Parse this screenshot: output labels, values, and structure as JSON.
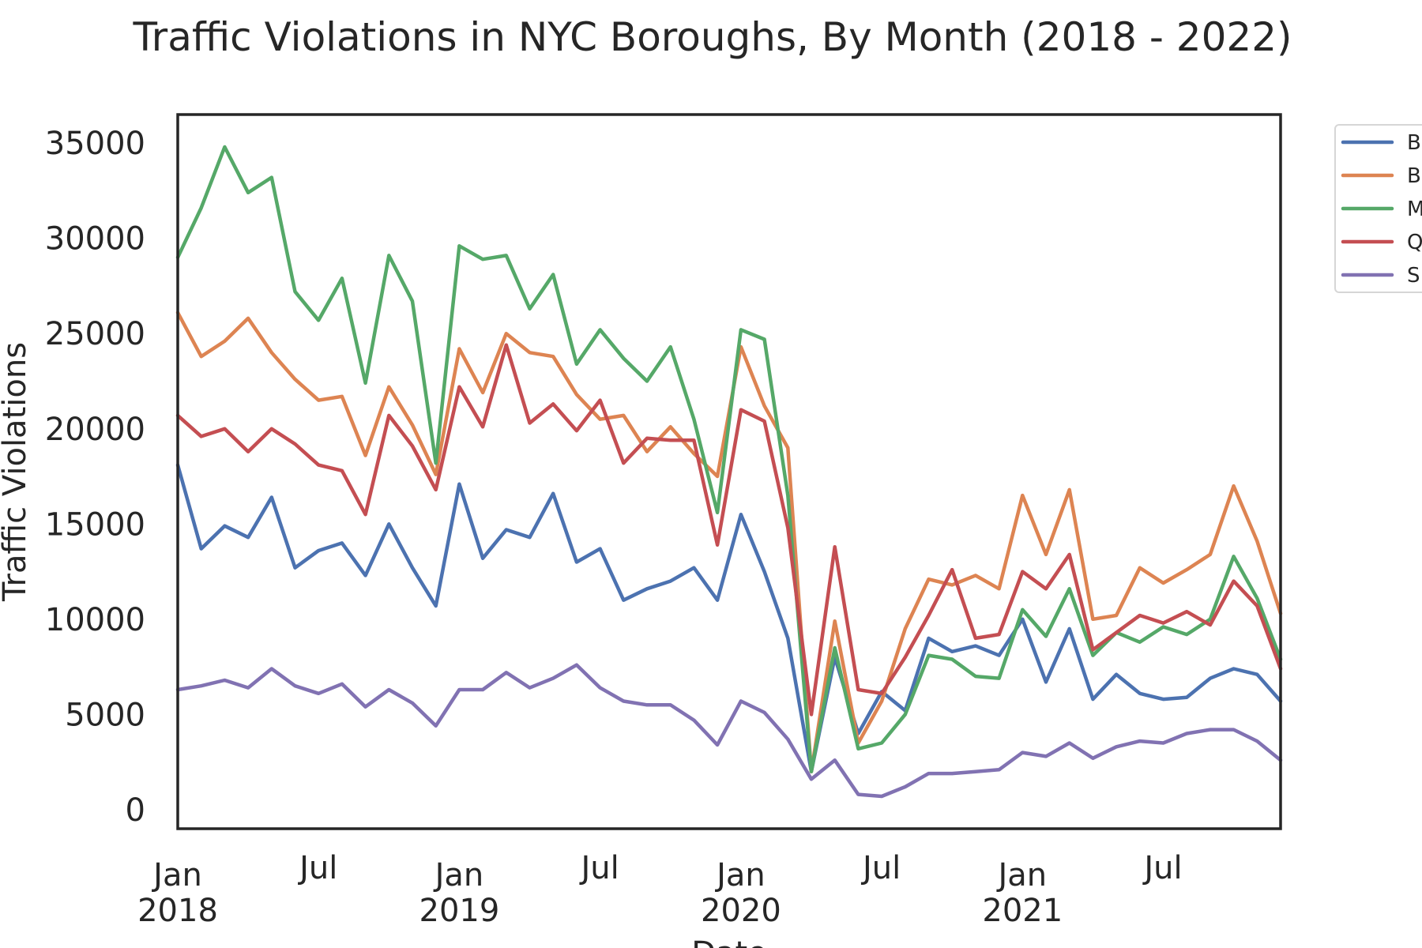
{
  "chart_data": {
    "type": "line",
    "title": "Traffic Violations in NYC Boroughs, By Month (2018 - 2022)",
    "xlabel": "Date",
    "ylabel": "Traffic Violations",
    "x": [
      "2018-01",
      "2018-02",
      "2018-03",
      "2018-04",
      "2018-05",
      "2018-06",
      "2018-07",
      "2018-08",
      "2018-09",
      "2018-10",
      "2018-11",
      "2018-12",
      "2019-01",
      "2019-02",
      "2019-03",
      "2019-04",
      "2019-05",
      "2019-06",
      "2019-07",
      "2019-08",
      "2019-09",
      "2019-10",
      "2019-11",
      "2019-12",
      "2020-01",
      "2020-02",
      "2020-03",
      "2020-04",
      "2020-05",
      "2020-06",
      "2020-07",
      "2020-08",
      "2020-09",
      "2020-10",
      "2020-11",
      "2020-12",
      "2021-01",
      "2021-02",
      "2021-03",
      "2021-04",
      "2021-05",
      "2021-06",
      "2021-07",
      "2021-08",
      "2021-09",
      "2021-10",
      "2021-11",
      "2021-12"
    ],
    "xlim": [
      "2018-01",
      "2021-12"
    ],
    "ylim": [
      -1000,
      36500
    ],
    "yticks": [
      0,
      5000,
      10000,
      15000,
      20000,
      25000,
      30000,
      35000
    ],
    "xticks": [
      {
        "x": "2018-01",
        "label": "Jan",
        "sublabel": "2018"
      },
      {
        "x": "2018-07",
        "label": "Jul",
        "sublabel": ""
      },
      {
        "x": "2019-01",
        "label": "Jan",
        "sublabel": "2019"
      },
      {
        "x": "2019-07",
        "label": "Jul",
        "sublabel": ""
      },
      {
        "x": "2020-01",
        "label": "Jan",
        "sublabel": "2020"
      },
      {
        "x": "2020-07",
        "label": "Jul",
        "sublabel": ""
      },
      {
        "x": "2021-01",
        "label": "Jan",
        "sublabel": "2021"
      },
      {
        "x": "2021-07",
        "label": "Jul",
        "sublabel": ""
      }
    ],
    "grid": false,
    "legend_position": "outside-right-top",
    "series": [
      {
        "name": "B",
        "color": "#4c72b0",
        "values": [
          18100,
          13700,
          14900,
          14300,
          16400,
          12700,
          13600,
          14000,
          12300,
          15000,
          12700,
          10700,
          17100,
          13200,
          14700,
          14300,
          16600,
          13000,
          13700,
          11000,
          11600,
          12000,
          12700,
          11000,
          15500,
          12500,
          9000,
          2000,
          8000,
          4000,
          6200,
          5200,
          9000,
          8300,
          8600,
          8100,
          10000,
          6700,
          9500,
          5800,
          7100,
          6100,
          5800,
          5900,
          6900,
          7400,
          7100,
          5700
        ]
      },
      {
        "name": "B",
        "color": "#dd8452",
        "values": [
          26100,
          23800,
          24600,
          25800,
          24000,
          22600,
          21500,
          21700,
          18600,
          22200,
          20200,
          17600,
          24200,
          21900,
          25000,
          24000,
          23800,
          21800,
          20500,
          20700,
          18800,
          20100,
          18700,
          17500,
          24300,
          21200,
          19000,
          2000,
          9900,
          3500,
          5700,
          9500,
          12100,
          11800,
          12300,
          11600,
          16500,
          13400,
          16800,
          10000,
          10200,
          12700,
          11900,
          12600,
          13400,
          17000,
          14100,
          10300
        ]
      },
      {
        "name": "M",
        "color": "#55a868",
        "values": [
          29000,
          31600,
          34800,
          32400,
          33200,
          27200,
          25700,
          27900,
          22400,
          29100,
          26700,
          18200,
          29600,
          28900,
          29100,
          26300,
          28100,
          23400,
          25200,
          23700,
          22500,
          24300,
          20500,
          15600,
          25200,
          24700,
          16500,
          2000,
          8500,
          3200,
          3500,
          5000,
          8100,
          7900,
          7000,
          6900,
          10500,
          9100,
          11600,
          8100,
          9300,
          8800,
          9600,
          9200,
          10000,
          13300,
          11100,
          7900
        ]
      },
      {
        "name": "Q",
        "color": "#c44e52",
        "values": [
          20700,
          19600,
          20000,
          18800,
          20000,
          19200,
          18100,
          17800,
          15500,
          20700,
          19100,
          16800,
          22200,
          20100,
          24400,
          20300,
          21300,
          19900,
          21500,
          18200,
          19500,
          19400,
          19400,
          13900,
          21000,
          20400,
          14800,
          5000,
          13800,
          6300,
          6100,
          8000,
          10200,
          12600,
          9000,
          9200,
          12500,
          11600,
          13400,
          8400,
          9300,
          10200,
          9800,
          10400,
          9700,
          12000,
          10700,
          7400
        ]
      },
      {
        "name": "S",
        "color": "#8172b2",
        "values": [
          6300,
          6500,
          6800,
          6400,
          7400,
          6500,
          6100,
          6600,
          5400,
          6300,
          5600,
          4400,
          6300,
          6300,
          7200,
          6400,
          6900,
          7600,
          6400,
          5700,
          5500,
          5500,
          4700,
          3400,
          5700,
          5100,
          3700,
          1600,
          2600,
          800,
          700,
          1200,
          1900,
          1900,
          2000,
          2100,
          3000,
          2800,
          3500,
          2700,
          3300,
          3600,
          3500,
          4000,
          4200,
          4200,
          3600,
          2600
        ]
      }
    ]
  }
}
